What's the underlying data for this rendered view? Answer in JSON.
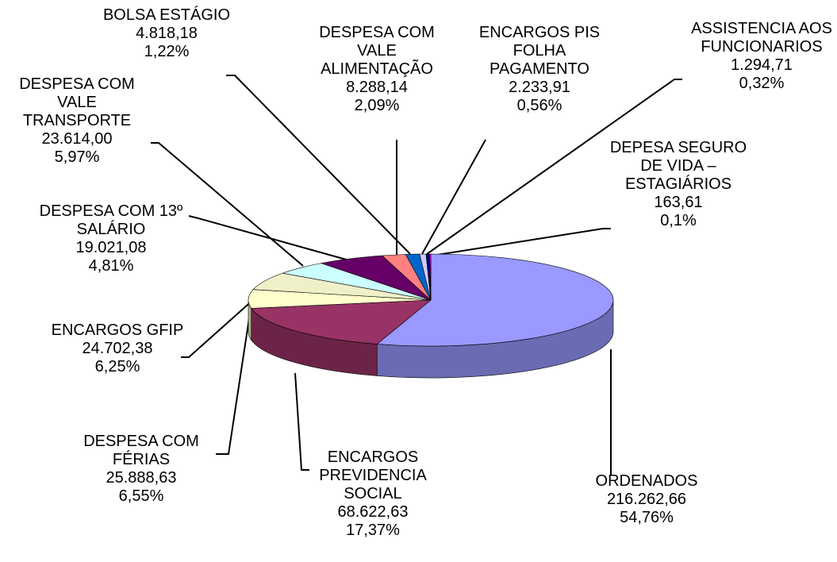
{
  "chart_data": {
    "type": "pie3d",
    "categories": [
      "ORDENADOS",
      "ENCARGOS PREVIDENCIA SOCIAL",
      "DESPESA COM FÉRIAS",
      "ENCARGOS GFIP",
      "DESPESA COM 13º SALÁRIO",
      "DESPESA COM VALE TRANSPORTE",
      "DESPESA COM VALE ALIMENTAÇÃO",
      "BOLSA ESTÁGIO",
      "ENCARGOS PIS FOLHA PAGAMENTO",
      "ASSISTENCIA AOS FUNCIONARIOS",
      "DEPESA SEGURO DE VIDA – ESTAGIÁRIOS"
    ],
    "values": [
      54.76,
      17.37,
      6.55,
      6.25,
      4.81,
      5.97,
      2.09,
      1.22,
      0.56,
      0.32,
      0.1
    ],
    "value_labels": [
      "54,76%",
      "17,37%",
      "6,55%",
      "6,25%",
      "4,81%",
      "5,97%",
      "2,09%",
      "1,22%",
      "0,56%",
      "0,32%",
      "0,1%"
    ],
    "amounts": [
      216262.66,
      68622.63,
      25888.63,
      24702.38,
      19021.08,
      23614.0,
      8288.14,
      4818.18,
      2233.91,
      1294.71,
      163.61
    ],
    "amount_labels": [
      "216.262,66",
      "68.622,63",
      "25.888,63",
      "24.702,38",
      "19.021,08",
      "23.614,00",
      "8.288,14",
      "4.818,18",
      "2.233,91",
      "1.294,71",
      "163,61"
    ],
    "colors": [
      "#9999ff",
      "#993366",
      "#ffffcc",
      "#f0f0c8",
      "#ccffff",
      "#660066",
      "#ff8080",
      "#0066cc",
      "#ccccff",
      "#000080",
      "#ff00ff"
    ]
  }
}
